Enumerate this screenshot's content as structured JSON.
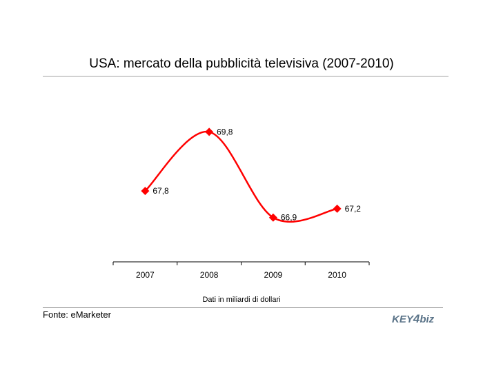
{
  "page": {
    "title": "USA: mercato della pubblicità televisiva (2007-2010)",
    "caption": "Dati in miliardi di dollari",
    "source": "Fonte: eMarketer"
  },
  "logo": {
    "text_part1": "KEY",
    "text_part2": "4",
    "text_part3": "biz",
    "color": "#5a7388"
  },
  "chart_data": {
    "type": "line",
    "title": "USA: mercato della pubblicità televisiva (2007-2010)",
    "categories": [
      "2007",
      "2008",
      "2009",
      "2010"
    ],
    "series": [
      {
        "values": [
          67.8,
          69.8,
          66.9,
          67.2
        ],
        "labels": [
          "67,8",
          "69,8",
          "66,9",
          "67,2"
        ],
        "color": "#ff0000",
        "marker": "diamond",
        "smooth": true
      }
    ],
    "xlabel": "Dati in miliardi di dollari",
    "ylabel": "",
    "ylim": [
      65.4,
      71.0
    ],
    "grid": false,
    "legend": "none"
  }
}
